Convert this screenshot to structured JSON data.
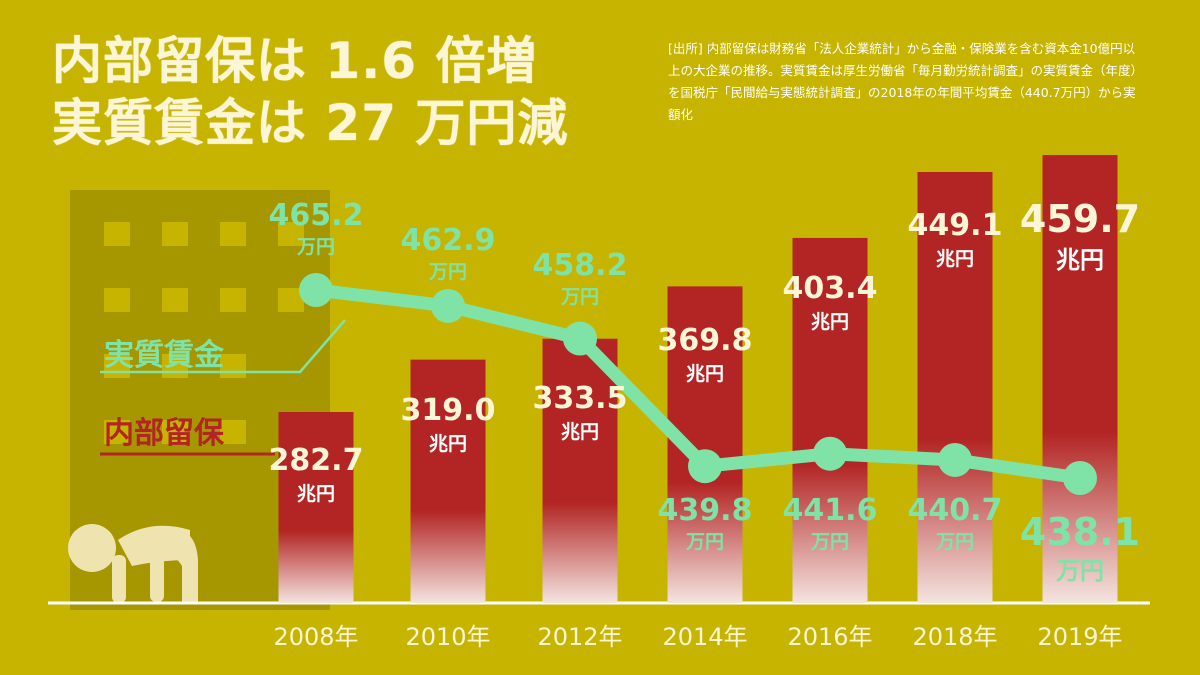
{
  "title": {
    "line1": "内部留保は 1.6 倍増",
    "line2": "実質賃金は 27 万円減"
  },
  "source_note": "[出所] 内部留保は財務省「法人企業統計」から金融・保険業を含む資本金10億円以上の大企業の推移。実質賃金は厚生労働省「毎月勤労統計調査」の実質賃金（年度）を国税庁「民間給与実態統計調査」の2018年の年間平均賃金（440.7万円）から実額化",
  "colors": {
    "background": "#c6b400",
    "bar": "#b22524",
    "line": "#7fe3a8",
    "bar_label": "#fdf6d6",
    "building": "#a69600"
  },
  "chart_data": {
    "type": "bar+line",
    "categories": [
      "2008年",
      "2010年",
      "2012年",
      "2014年",
      "2016年",
      "2018年",
      "2019年"
    ],
    "series": [
      {
        "name": "内部留保",
        "type": "bar",
        "unit": "兆円",
        "values": [
          282.7,
          319.0,
          333.5,
          369.8,
          403.4,
          449.1,
          459.7
        ],
        "labels": [
          "282.7",
          "319.0",
          "333.5",
          "369.8",
          "403.4",
          "449.1",
          "459.7"
        ]
      },
      {
        "name": "実質賃金",
        "type": "line",
        "unit": "万円",
        "values": [
          465.2,
          462.9,
          458.2,
          439.8,
          441.6,
          440.7,
          438.1
        ],
        "labels": [
          "465.2",
          "462.9",
          "458.2",
          "439.8",
          "441.6",
          "440.7",
          "438.1"
        ]
      }
    ],
    "legend": [
      "実質賃金",
      "内部留保"
    ],
    "legend_placement": "left"
  }
}
